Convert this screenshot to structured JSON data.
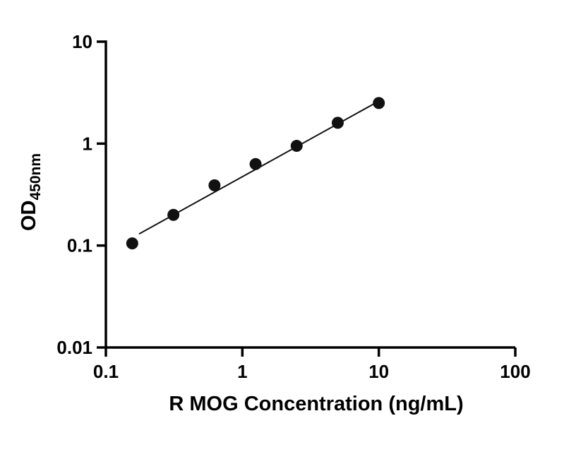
{
  "chart_data": {
    "type": "scatter",
    "title": "",
    "xlabel": "R MOG Concentration (ng/mL)",
    "ylabel_main": "OD",
    "ylabel_sub": "450nm",
    "x_scale": "log",
    "y_scale": "log",
    "xlim": [
      0.1,
      100
    ],
    "ylim": [
      0.01,
      10
    ],
    "x_ticks": [
      0.1,
      1,
      10,
      100
    ],
    "x_tick_labels": [
      "0.1",
      "1",
      "10",
      "100"
    ],
    "y_ticks": [
      0.01,
      0.1,
      1,
      10
    ],
    "y_tick_labels": [
      "0.01",
      "0.1",
      "1",
      "10"
    ],
    "x": [
      0.156,
      0.3125,
      0.625,
      1.25,
      2.5,
      5,
      10
    ],
    "y": [
      0.105,
      0.2,
      0.39,
      0.63,
      0.95,
      1.6,
      2.5
    ],
    "fit_line": {
      "x": [
        0.175,
        10.05
      ],
      "y": [
        0.13,
        2.62
      ]
    },
    "grid": false,
    "legend": false,
    "marker_color": "#111111",
    "line_color": "#111111",
    "axis_color": "#000000",
    "background_color": "#ffffff"
  }
}
